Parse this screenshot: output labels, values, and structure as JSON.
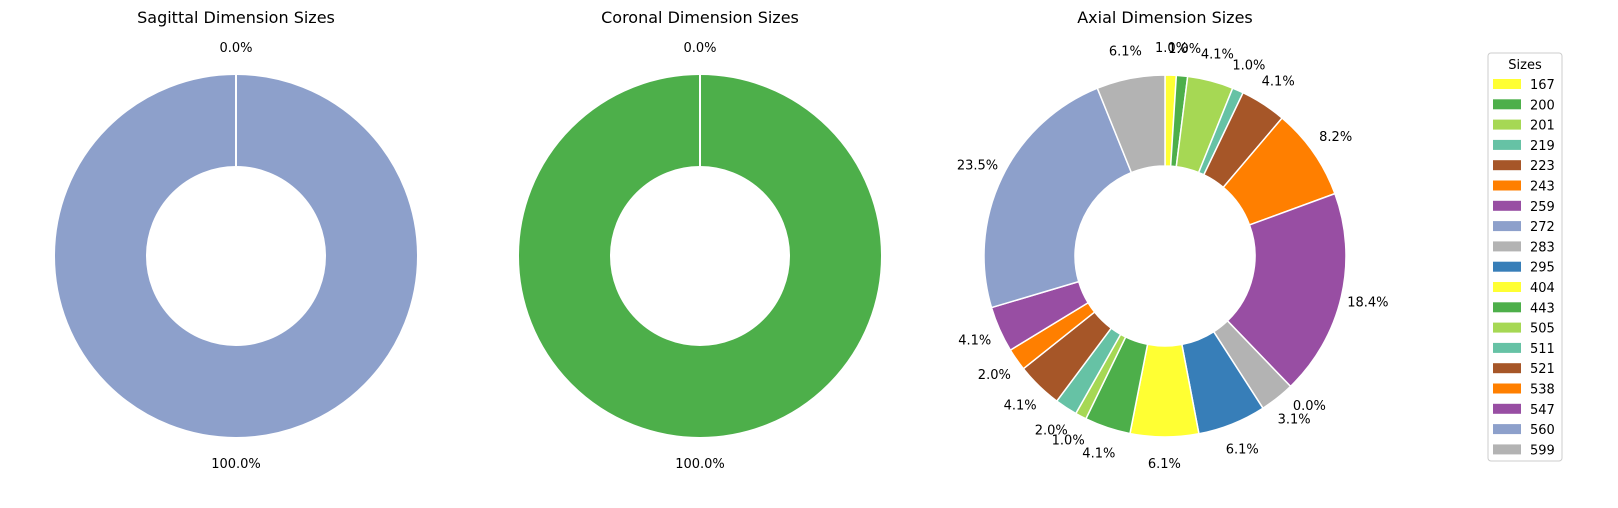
{
  "colors": {
    "167": "#ffff33",
    "200": "#4daf4a",
    "201": "#a6d854",
    "219": "#66c2a5",
    "223": "#a65628",
    "243": "#ff7f00",
    "259": "#984ea3",
    "272": "#8da0cb",
    "283": "#b3b3b3",
    "295": "#377eb8",
    "404": "#ffff33",
    "443": "#4daf4a",
    "505": "#a6d854",
    "511": "#66c2a5",
    "521": "#a65628",
    "538": "#ff7f00",
    "547": "#984ea3",
    "560": "#8da0cb",
    "599": "#b3b3b3"
  },
  "legend": {
    "title": "Sizes",
    "entries": [
      "167",
      "200",
      "201",
      "219",
      "223",
      "243",
      "259",
      "272",
      "283",
      "295",
      "404",
      "443",
      "505",
      "511",
      "521",
      "538",
      "547",
      "560",
      "599"
    ]
  },
  "chart_data": [
    {
      "type": "pie",
      "variant": "donut",
      "title": "Sagittal Dimension Sizes",
      "slices": [
        {
          "size": "167",
          "value": 0.0,
          "label": "0.0%"
        },
        {
          "size": "272",
          "value": 100.0,
          "label": "100.0%"
        }
      ]
    },
    {
      "type": "pie",
      "variant": "donut",
      "title": "Coronal Dimension Sizes",
      "slices": [
        {
          "size": "167",
          "value": 0.0,
          "label": "0.0%"
        },
        {
          "size": "200",
          "value": 100.0,
          "label": "100.0%"
        }
      ]
    },
    {
      "type": "pie",
      "variant": "donut",
      "title": "Axial Dimension Sizes",
      "slices": [
        {
          "size": "167",
          "value": 1.0,
          "label": "1.0%"
        },
        {
          "size": "200",
          "value": 1.0,
          "label": "1.0%"
        },
        {
          "size": "201",
          "value": 4.1,
          "label": "4.1%"
        },
        {
          "size": "219",
          "value": 1.0,
          "label": "1.0%"
        },
        {
          "size": "223",
          "value": 4.1,
          "label": "4.1%"
        },
        {
          "size": "243",
          "value": 8.2,
          "label": "8.2%"
        },
        {
          "size": "259",
          "value": 18.4,
          "label": "18.4%"
        },
        {
          "size": "272",
          "value": 0.0,
          "label": "0.0%"
        },
        {
          "size": "283",
          "value": 3.1,
          "label": "3.1%"
        },
        {
          "size": "295",
          "value": 6.1,
          "label": "6.1%"
        },
        {
          "size": "404",
          "value": 6.1,
          "label": "6.1%"
        },
        {
          "size": "443",
          "value": 4.1,
          "label": "4.1%"
        },
        {
          "size": "505",
          "value": 1.0,
          "label": "1.0%"
        },
        {
          "size": "511",
          "value": 2.0,
          "label": "2.0%"
        },
        {
          "size": "521",
          "value": 4.1,
          "label": "4.1%"
        },
        {
          "size": "538",
          "value": 2.0,
          "label": "2.0%"
        },
        {
          "size": "547",
          "value": 4.1,
          "label": "4.1%"
        },
        {
          "size": "560",
          "value": 23.5,
          "label": "23.5%"
        },
        {
          "size": "599",
          "value": 6.1,
          "label": "6.1%"
        }
      ]
    }
  ]
}
